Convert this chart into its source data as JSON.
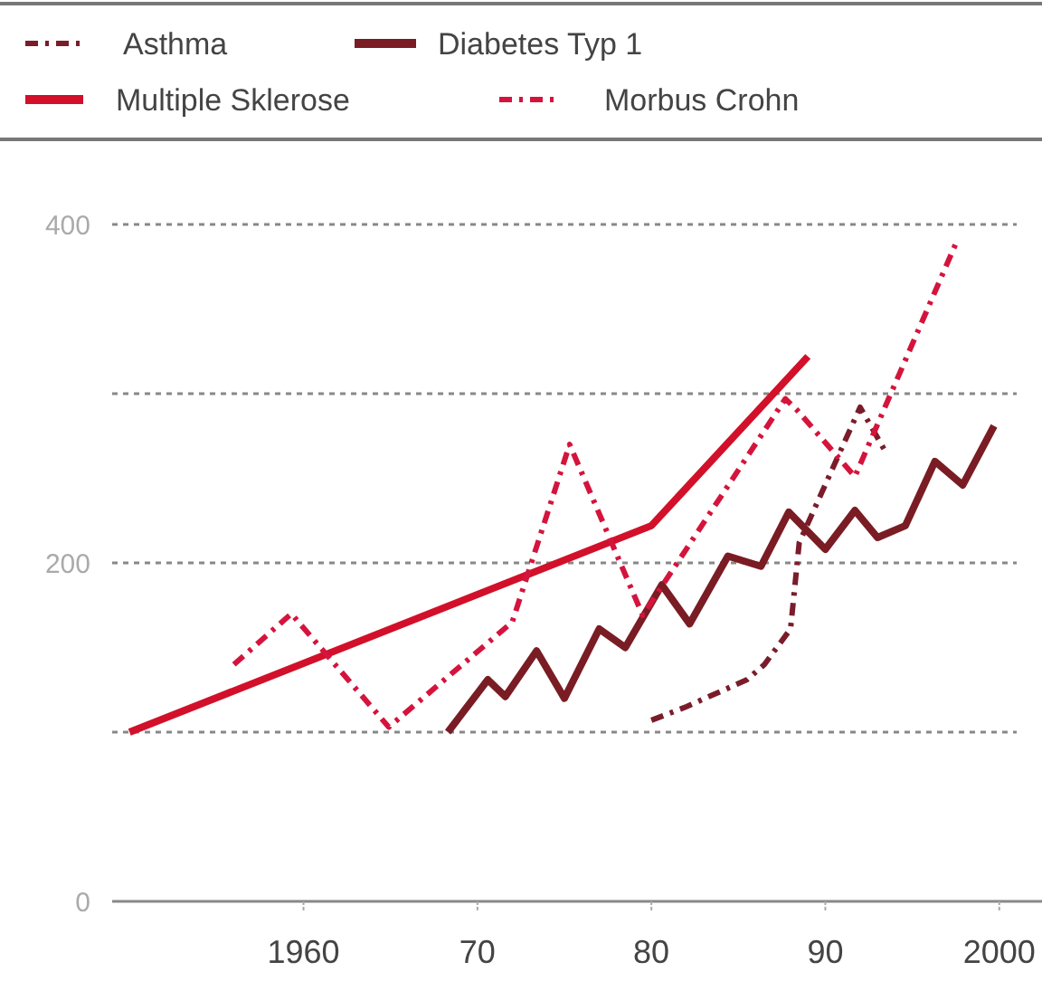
{
  "chart_data": {
    "type": "line",
    "xlim": [
      1949,
      2001
    ],
    "xticks": [
      {
        "value": 1960,
        "label": "1960"
      },
      {
        "value": 1970,
        "label": "70"
      },
      {
        "value": 1980,
        "label": "80"
      },
      {
        "value": 1990,
        "label": "90"
      },
      {
        "value": 2000,
        "label": "2000"
      }
    ],
    "ylim": [
      0,
      400
    ],
    "yticks": [
      0,
      {
        "value": 100,
        "label": null
      },
      200,
      {
        "value": 300,
        "label": null
      },
      400
    ],
    "grid": "y",
    "legend": "top",
    "series": [
      {
        "name": "Asthma",
        "color": "#7a1c2a",
        "line_style": "dashed",
        "x": [
          1980,
          1982,
          1985.5,
          1986.5,
          1988,
          1988.5,
          1992,
          1993.5
        ],
        "values": [
          107,
          115,
          131,
          140,
          161,
          212,
          292,
          265
        ]
      },
      {
        "name": "Diabetes Typ 1",
        "color": "#7a1c24",
        "line_style": "solid",
        "x": [
          1968.3,
          1970.6,
          1971.6,
          1973.4,
          1975,
          1977,
          1978.5,
          1980.6,
          1982.2,
          1984.4,
          1986.3,
          1987.9,
          1990,
          1991.7,
          1993,
          1994.6,
          1996.3,
          1997.9,
          1999.7
        ],
        "values": [
          100,
          131,
          121,
          148,
          120,
          161,
          150,
          187,
          164,
          204,
          198,
          230,
          208,
          231,
          215,
          222,
          260,
          246,
          281
        ]
      },
      {
        "name": "Multiple Sklerose",
        "color": "#d2102a",
        "line_style": "solid",
        "x": [
          1950,
          1980,
          1989
        ],
        "values": [
          100,
          222,
          322
        ]
      },
      {
        "name": "Morbus Crohn",
        "color": "#d4143c",
        "line_style": "dashed",
        "x": [
          1956,
          1959.3,
          1964.9,
          1972,
          1975.3,
          1979.5,
          1987.7,
          1988.4,
          1991.7,
          1997.6
        ],
        "values": [
          140,
          170,
          103,
          165,
          270,
          169,
          297,
          290,
          251,
          391
        ]
      }
    ]
  }
}
